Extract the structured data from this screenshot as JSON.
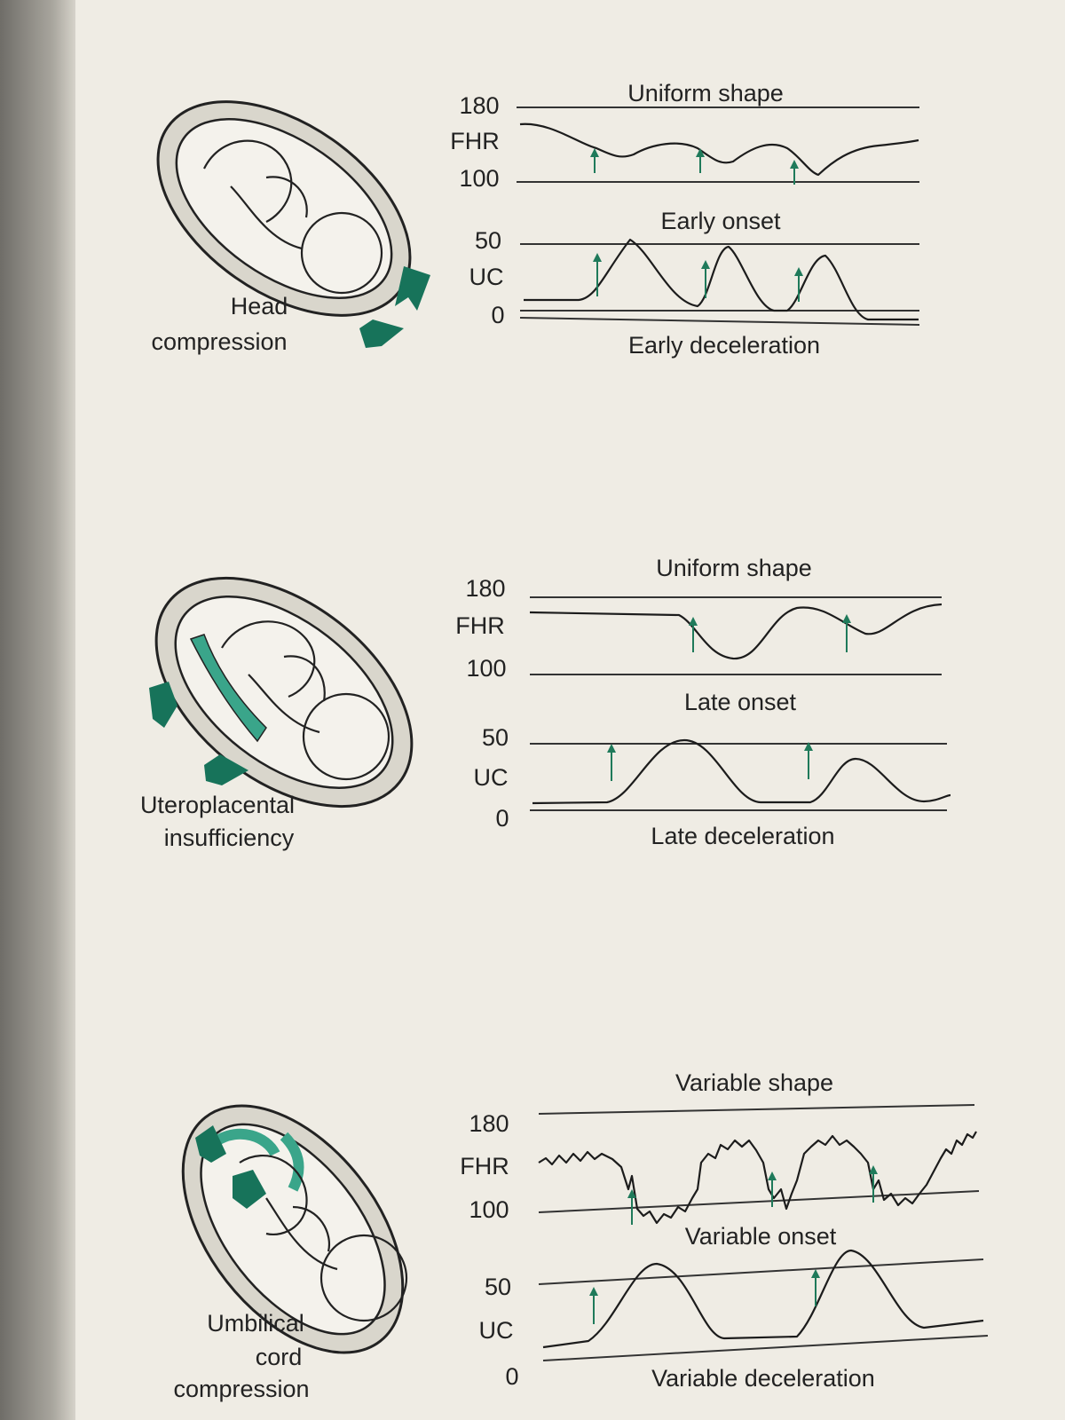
{
  "panels": [
    {
      "caption_lines": [
        "Head",
        "compression"
      ],
      "fhr_label": "Uniform shape",
      "uc_label": "Early onset",
      "footer": "Early deceleration",
      "fhr_axis": [
        "180",
        "FHR",
        "100"
      ],
      "uc_axis": [
        "50",
        "UC",
        "0"
      ]
    },
    {
      "caption_lines": [
        "Uteroplacental",
        "insufficiency"
      ],
      "fhr_label": "Uniform shape",
      "uc_label": "Late onset",
      "footer": "Late deceleration",
      "fhr_axis": [
        "180",
        "FHR",
        "100"
      ],
      "uc_axis": [
        "50",
        "UC",
        "0"
      ]
    },
    {
      "caption_lines": [
        "Umbilical",
        "cord",
        "compression"
      ],
      "fhr_label": "Variable shape",
      "uc_label": "Variable onset",
      "footer": "Variable deceleration",
      "fhr_axis": [
        "180",
        "FHR",
        "100"
      ],
      "uc_axis": [
        "50",
        "UC",
        "0"
      ]
    }
  ]
}
